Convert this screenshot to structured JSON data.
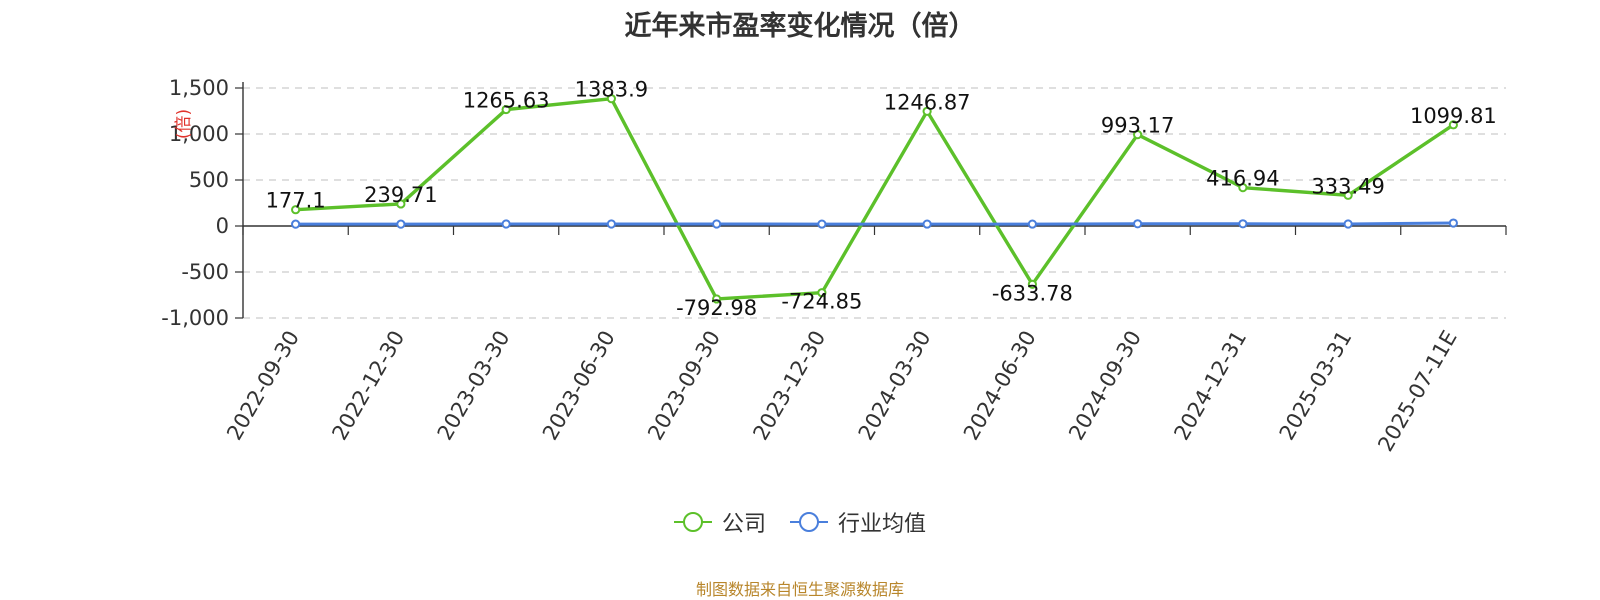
{
  "chart_data": {
    "type": "line",
    "title": "近年来市盈率变化情况（倍）",
    "ylabel": "(倍)",
    "ylim": [
      -1000,
      1500
    ],
    "yticks": [
      -1000,
      -500,
      0,
      500,
      1000,
      1500
    ],
    "ytick_labels": [
      "-1,000",
      "-500",
      "0",
      "500",
      "1,000",
      "1,500"
    ],
    "grid": true,
    "legend_position": "bottom",
    "categories": [
      "2022-09-30",
      "2022-12-30",
      "2023-03-30",
      "2023-06-30",
      "2023-09-30",
      "2023-12-30",
      "2024-03-30",
      "2024-06-30",
      "2024-09-30",
      "2024-12-31",
      "2025-03-31",
      "2025-07-11E"
    ],
    "series": [
      {
        "name": "公司",
        "color": "#5cc02a",
        "values": [
          177.1,
          239.71,
          1265.63,
          1383.9,
          -792.98,
          -724.85,
          1246.87,
          -633.78,
          993.17,
          416.94,
          333.49,
          1099.81
        ],
        "labels": [
          "177.1",
          "239.71",
          "1265.63",
          "1383.9",
          "-792.98",
          "-724.85",
          "1246.87",
          "-633.78",
          "993.17",
          "416.94",
          "333.49",
          "1099.81"
        ]
      },
      {
        "name": "行业均值",
        "color": "#4a7fdc",
        "values": [
          20,
          20,
          22,
          22,
          22,
          21,
          21,
          21,
          24,
          24,
          22,
          32
        ]
      }
    ]
  },
  "source": "制图数据来自恒生聚源数据库"
}
